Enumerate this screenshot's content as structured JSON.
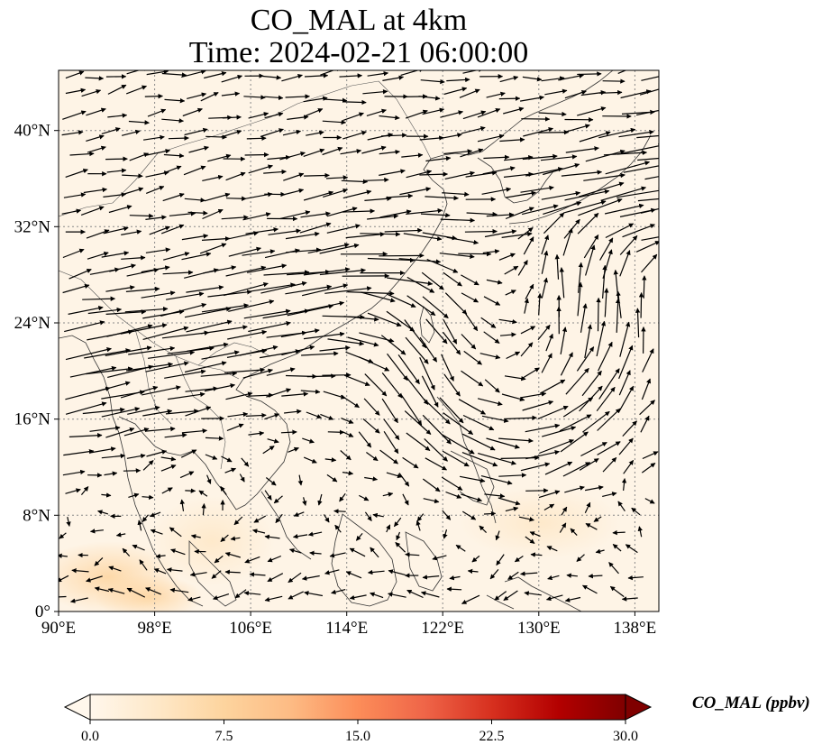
{
  "title": {
    "line1": "CO_MAL at 4km",
    "line2": "Time: 2024-02-21 06:00:00"
  },
  "map": {
    "lon_range": [
      90,
      140
    ],
    "lat_range": [
      0,
      45
    ],
    "lon_ticks": [
      "90°E",
      "98°E",
      "106°E",
      "114°E",
      "122°E",
      "130°E",
      "138°E"
    ],
    "lat_ticks": [
      "0°",
      "8°N",
      "16°N",
      "24°N",
      "32°N",
      "40°N"
    ],
    "gridlines": "dotted",
    "field": "CO_MAL",
    "vectors": "wind",
    "features": [
      "westerly jet across 24–40°N",
      "anticyclonic circulation near 127°E, 21°N",
      "higher CO_MAL near 0–4°N, 93–105°E"
    ]
  },
  "colorbar": {
    "label": "CO_MAL (ppbv)",
    "ticks": [
      "0.0",
      "7.5",
      "15.0",
      "22.5",
      "30.0"
    ],
    "range": [
      0,
      30
    ],
    "extend": "both",
    "colormap": "OrRd",
    "colors": [
      "#fff7ec",
      "#fee8c8",
      "#fdd49e",
      "#fdbb84",
      "#fc8d59",
      "#ef6548",
      "#d7301f",
      "#b30000",
      "#7f0000"
    ]
  }
}
